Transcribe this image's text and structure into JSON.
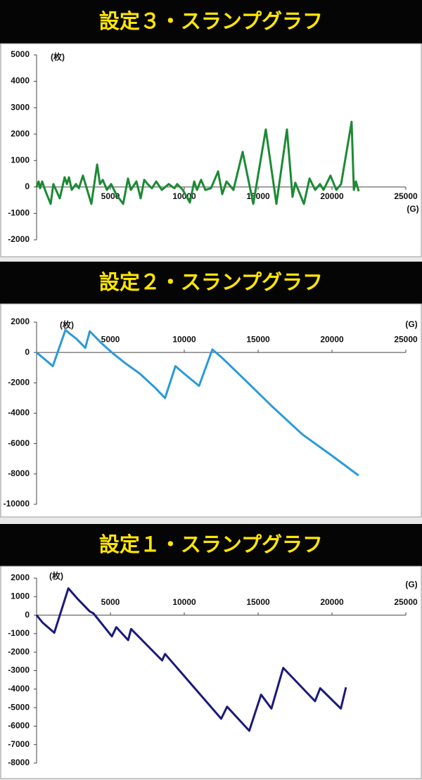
{
  "chart_data": [
    {
      "type": "line",
      "title": "設定３・スランプグラフ",
      "y_unit": "(枚)",
      "x_unit": "(G)",
      "color": "#1c8a35",
      "xlim": [
        0,
        25000
      ],
      "xticks": [
        5000,
        10000,
        15000,
        20000,
        25000
      ],
      "ylim": [
        -2000,
        5000
      ],
      "yticks": [
        5000,
        4000,
        3000,
        2000,
        1000,
        0,
        -1000,
        -2000
      ],
      "x": [
        0,
        140,
        240,
        380,
        570,
        950,
        1140,
        1570,
        1900,
        2050,
        2190,
        2380,
        2670,
        2860,
        3140,
        3710,
        4100,
        4290,
        4480,
        4760,
        5050,
        5380,
        5860,
        6190,
        6380,
        6760,
        7050,
        7290,
        7520,
        7810,
        8100,
        8480,
        8950,
        9330,
        9520,
        9900,
        10380,
        10670,
        10860,
        11140,
        11430,
        11810,
        12290,
        12570,
        12860,
        13330,
        13950,
        14670,
        15520,
        16240,
        16950,
        17330,
        17520,
        18100,
        18480,
        18860,
        19190,
        19430,
        19900,
        20290,
        20620,
        21330,
        21480,
        21620,
        21810
      ],
      "values": [
        0,
        210,
        -50,
        210,
        -110,
        -640,
        110,
        -430,
        370,
        110,
        370,
        -110,
        110,
        -50,
        430,
        -640,
        850,
        110,
        270,
        -110,
        110,
        -270,
        -640,
        320,
        -110,
        210,
        -430,
        270,
        110,
        -50,
        210,
        -110,
        110,
        -50,
        110,
        -110,
        -590,
        210,
        -110,
        270,
        -110,
        -50,
        590,
        -270,
        210,
        -110,
        1330,
        -640,
        2180,
        -640,
        2180,
        -370,
        160,
        -640,
        320,
        -110,
        110,
        -110,
        430,
        -110,
        110,
        2470,
        -110,
        210,
        -160
      ]
    },
    {
      "type": "line",
      "title": "設定２・スランプグラフ",
      "y_unit": "(枚)",
      "x_unit": "(G)",
      "color": "#2b9ad9",
      "xlim": [
        0,
        25000
      ],
      "xticks": [
        5000,
        10000,
        15000,
        20000,
        25000
      ],
      "ylim": [
        -10000,
        2000
      ],
      "yticks": [
        2000,
        0,
        -2000,
        -4000,
        -6000,
        -8000,
        -10000
      ],
      "x": [
        0,
        500,
        1100,
        1950,
        2300,
        2700,
        3300,
        3600,
        4000,
        4300,
        5100,
        6000,
        7000,
        8000,
        8700,
        9400,
        10000,
        11000,
        11900,
        12500,
        14000,
        16000,
        18000,
        20000,
        21800
      ],
      "values": [
        0,
        -400,
        -900,
        1480,
        1200,
        900,
        300,
        1400,
        1000,
        700,
        0,
        -700,
        -1400,
        -2300,
        -3000,
        -900,
        -1400,
        -2200,
        200,
        -300,
        -1700,
        -3600,
        -5400,
        -6800,
        -8100
      ]
    },
    {
      "type": "line",
      "title": "設定１・スランプグラフ",
      "y_unit": "(枚)",
      "x_unit": "(G)",
      "color": "#1b1a78",
      "xlim": [
        0,
        25000
      ],
      "xticks": [
        5000,
        10000,
        15000,
        20000,
        25000
      ],
      "ylim": [
        -8000,
        2000
      ],
      "yticks": [
        2000,
        1000,
        0,
        -1000,
        -2000,
        -3000,
        -4000,
        -5000,
        -6000,
        -7000,
        -8000
      ],
      "x": [
        0,
        400,
        1200,
        2150,
        2750,
        3600,
        3850,
        5100,
        5400,
        6200,
        6400,
        8500,
        8700,
        12500,
        12900,
        14400,
        15200,
        15900,
        16700,
        18850,
        19200,
        20600,
        20950
      ],
      "values": [
        0,
        -400,
        -950,
        1450,
        900,
        200,
        100,
        -1150,
        -650,
        -1350,
        -750,
        -2450,
        -2100,
        -5600,
        -4950,
        -6250,
        -4300,
        -5050,
        -2850,
        -4650,
        -3950,
        -5050,
        -3900
      ]
    }
  ]
}
